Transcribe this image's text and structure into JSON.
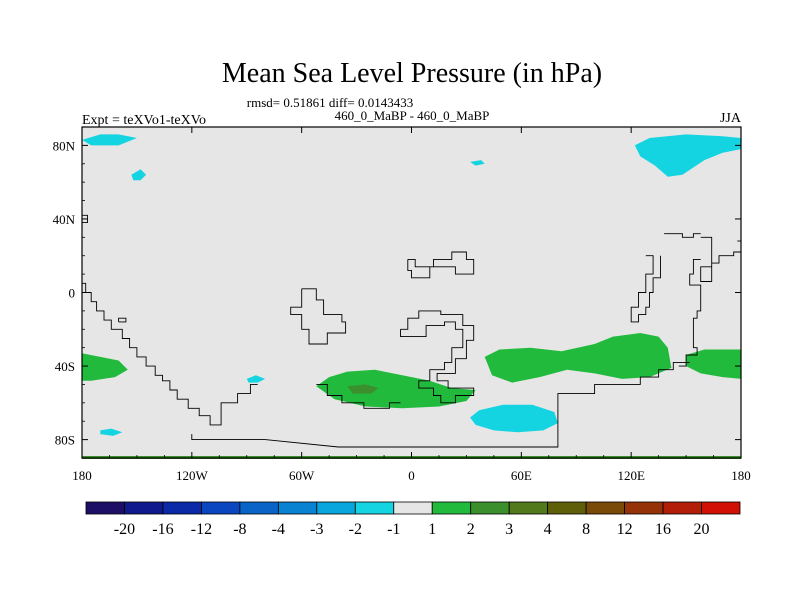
{
  "chart_data": {
    "type": "heatmap",
    "title": "Mean Sea Level Pressure (in hPa)",
    "stats": "rmsd= 0.51861 diff= 0.0143433",
    "experiment": "Expt = teXVo1-teXVo",
    "comparison": "460_0_MaBP - 460_0_MaBP",
    "season": "JJA",
    "x_range": [
      -180,
      180
    ],
    "y_range": [
      -90,
      90
    ],
    "x_ticks": [
      {
        "value": -180,
        "label": "180"
      },
      {
        "value": -120,
        "label": "120W"
      },
      {
        "value": -60,
        "label": "60W"
      },
      {
        "value": 0,
        "label": "0"
      },
      {
        "value": 60,
        "label": "60E"
      },
      {
        "value": 120,
        "label": "120E"
      },
      {
        "value": 180,
        "label": "180"
      }
    ],
    "y_ticks": [
      {
        "value": 80,
        "label": "80N"
      },
      {
        "value": 40,
        "label": "40N"
      },
      {
        "value": 0,
        "label": "0"
      },
      {
        "value": -40,
        "label": "40S"
      },
      {
        "value": -80,
        "label": "80S"
      }
    ],
    "colorbar": {
      "levels": [
        "-20",
        "-16",
        "-12",
        "-8",
        "-4",
        "-3",
        "-2",
        "-1",
        "1",
        "2",
        "3",
        "4",
        "8",
        "12",
        "16",
        "20"
      ],
      "colors": [
        "#1e0f66",
        "#111a8c",
        "#0b2aa8",
        "#0a46c0",
        "#0a64c8",
        "#0a82d2",
        "#09a6dd",
        "#14d4e2",
        "#e6e6e6",
        "#22ba3d",
        "#3c8f2d",
        "#527a1c",
        "#5f5f0a",
        "#7a4a08",
        "#963208",
        "#b21e08",
        "#d21006"
      ]
    },
    "background_color": "#e6e6e6",
    "anomalies": [
      {
        "category": "-1 to -2",
        "color": "#14d4e2",
        "points": [
          [
            -180,
            83
          ],
          [
            -170,
            86
          ],
          [
            -160,
            86
          ],
          [
            -150,
            84
          ],
          [
            -160,
            80
          ],
          [
            -175,
            80
          ]
        ]
      },
      {
        "category": "-1 to -2",
        "color": "#14d4e2",
        "points": [
          [
            -153,
            64
          ],
          [
            -148,
            67
          ],
          [
            -145,
            64
          ],
          [
            -148,
            61
          ],
          [
            -152,
            61
          ]
        ]
      },
      {
        "category": "-1 to -2",
        "color": "#14d4e2",
        "points": [
          [
            32,
            71
          ],
          [
            38,
            72
          ],
          [
            40,
            70
          ],
          [
            35,
            69
          ]
        ]
      },
      {
        "category": "-1 to -2",
        "color": "#14d4e2",
        "points": [
          [
            122,
            80
          ],
          [
            130,
            84
          ],
          [
            150,
            86
          ],
          [
            170,
            85
          ],
          [
            180,
            84
          ],
          [
            180,
            78
          ],
          [
            170,
            76
          ],
          [
            160,
            72
          ],
          [
            148,
            64
          ],
          [
            140,
            63
          ],
          [
            133,
            69
          ],
          [
            125,
            74
          ]
        ]
      },
      {
        "category": "-1 to -2",
        "color": "#14d4e2",
        "points": [
          [
            -90,
            -47
          ],
          [
            -85,
            -45
          ],
          [
            -80,
            -47
          ],
          [
            -84,
            -49
          ],
          [
            -89,
            -49
          ]
        ]
      },
      {
        "category": "-1 to -2",
        "color": "#14d4e2",
        "points": [
          [
            -170,
            -75
          ],
          [
            -164,
            -74
          ],
          [
            -158,
            -76
          ],
          [
            -163,
            -78
          ],
          [
            -170,
            -77
          ]
        ]
      },
      {
        "category": "-1 to -2",
        "color": "#14d4e2",
        "points": [
          [
            32,
            -68
          ],
          [
            37,
            -64
          ],
          [
            50,
            -61
          ],
          [
            66,
            -61
          ],
          [
            78,
            -65
          ],
          [
            80,
            -71
          ],
          [
            72,
            -75
          ],
          [
            58,
            -76
          ],
          [
            45,
            -75
          ],
          [
            35,
            -72
          ]
        ]
      },
      {
        "category": "1 to 2",
        "color": "#22ba3d",
        "points": [
          [
            -180,
            -33
          ],
          [
            -170,
            -35
          ],
          [
            -160,
            -37
          ],
          [
            -155,
            -42
          ],
          [
            -162,
            -46
          ],
          [
            -175,
            -48
          ],
          [
            -180,
            -48
          ]
        ]
      },
      {
        "category": "1 to 2",
        "color": "#22ba3d",
        "points": [
          [
            -52,
            -51
          ],
          [
            -45,
            -46
          ],
          [
            -35,
            -43
          ],
          [
            -20,
            -42
          ],
          [
            -5,
            -45
          ],
          [
            10,
            -48
          ],
          [
            22,
            -52
          ],
          [
            35,
            -53
          ],
          [
            30,
            -59
          ],
          [
            15,
            -62
          ],
          [
            -5,
            -63
          ],
          [
            -25,
            -62
          ],
          [
            -42,
            -58
          ]
        ]
      },
      {
        "category": "1 to 2",
        "color": "#22ba3d",
        "points": [
          [
            40,
            -35
          ],
          [
            48,
            -31
          ],
          [
            65,
            -30
          ],
          [
            82,
            -32
          ],
          [
            100,
            -28
          ],
          [
            110,
            -24
          ],
          [
            125,
            -22
          ],
          [
            135,
            -24
          ],
          [
            140,
            -30
          ],
          [
            142,
            -41
          ],
          [
            130,
            -46
          ],
          [
            115,
            -47
          ],
          [
            100,
            -44
          ],
          [
            85,
            -42
          ],
          [
            70,
            -46
          ],
          [
            55,
            -49
          ],
          [
            44,
            -45
          ]
        ]
      },
      {
        "category": "1 to 2",
        "color": "#22ba3d",
        "points": [
          [
            150,
            -34
          ],
          [
            160,
            -31
          ],
          [
            172,
            -31
          ],
          [
            180,
            -31
          ],
          [
            180,
            -47
          ],
          [
            170,
            -46
          ],
          [
            158,
            -44
          ],
          [
            150,
            -40
          ]
        ]
      },
      {
        "category": "2 to 3",
        "color": "#3c8f2d",
        "points": [
          [
            -35,
            -51
          ],
          [
            -25,
            -50
          ],
          [
            -18,
            -52
          ],
          [
            -22,
            -55
          ],
          [
            -32,
            -55
          ]
        ]
      }
    ],
    "boundaries": [
      [
        [
          -180,
          42
        ],
        [
          -177,
          42
        ],
        [
          -177,
          38
        ],
        [
          -180,
          38
        ]
      ],
      [
        [
          -180,
          5
        ],
        [
          -178,
          5
        ],
        [
          -178,
          0
        ],
        [
          -175,
          0
        ],
        [
          -175,
          -5
        ],
        [
          -172,
          -5
        ],
        [
          -172,
          -10
        ],
        [
          -168,
          -10
        ],
        [
          -168,
          -15
        ],
        [
          -164,
          -15
        ],
        [
          -164,
          -20
        ],
        [
          -158,
          -20
        ],
        [
          -158,
          -25
        ],
        [
          -154,
          -25
        ],
        [
          -154,
          -30
        ],
        [
          -150,
          -30
        ],
        [
          -150,
          -35
        ],
        [
          -145,
          -35
        ],
        [
          -145,
          -40
        ],
        [
          -140,
          -40
        ],
        [
          -140,
          -45
        ],
        [
          -136,
          -45
        ],
        [
          -136,
          -48
        ],
        [
          -132,
          -48
        ],
        [
          -132,
          -53
        ],
        [
          -128,
          -53
        ],
        [
          -128,
          -58
        ],
        [
          -122,
          -58
        ],
        [
          -122,
          -63
        ],
        [
          -116,
          -63
        ],
        [
          -116,
          -67
        ],
        [
          -110,
          -67
        ],
        [
          -110,
          -72
        ],
        [
          -104,
          -72
        ],
        [
          -104,
          -60
        ],
        [
          -95,
          -60
        ],
        [
          -95,
          -55
        ],
        [
          -88,
          -55
        ],
        [
          -88,
          -50
        ],
        [
          -84,
          -50
        ]
      ],
      [
        [
          -160,
          -16
        ],
        [
          -156,
          -16
        ],
        [
          -156,
          -14
        ],
        [
          -160,
          -14
        ],
        [
          -160,
          -16
        ]
      ],
      [
        [
          -120,
          -77
        ],
        [
          -120,
          -80
        ],
        [
          -80,
          -80
        ],
        [
          -40,
          -84
        ],
        [
          0,
          -84
        ],
        [
          40,
          -84
        ],
        [
          80,
          -84
        ],
        [
          80,
          -55
        ],
        [
          100,
          -55
        ],
        [
          100,
          -50
        ],
        [
          125,
          -50
        ],
        [
          125,
          -46
        ],
        [
          135,
          -46
        ],
        [
          135,
          -42
        ],
        [
          143,
          -42
        ],
        [
          143,
          -38
        ],
        [
          152,
          -38
        ]
      ],
      [
        [
          -60,
          2
        ],
        [
          -52,
          2
        ],
        [
          -52,
          -4
        ],
        [
          -48,
          -4
        ],
        [
          -48,
          -12
        ],
        [
          -38,
          -12
        ],
        [
          -38,
          -16
        ],
        [
          -36,
          -16
        ],
        [
          -36,
          -22
        ],
        [
          -46,
          -22
        ],
        [
          -46,
          -28
        ],
        [
          -56,
          -28
        ],
        [
          -56,
          -20
        ],
        [
          -60,
          -20
        ],
        [
          -60,
          -12
        ],
        [
          -66,
          -12
        ],
        [
          -66,
          -8
        ],
        [
          -60,
          -8
        ],
        [
          -60,
          2
        ]
      ],
      [
        [
          -52,
          -50
        ],
        [
          -46,
          -50
        ],
        [
          -46,
          -56
        ],
        [
          -38,
          -56
        ],
        [
          -38,
          -60
        ],
        [
          -26,
          -60
        ],
        [
          -26,
          -63
        ],
        [
          -12,
          -63
        ],
        [
          -12,
          -60
        ],
        [
          -6,
          -60
        ]
      ],
      [
        [
          -2,
          18
        ],
        [
          2,
          18
        ],
        [
          2,
          14
        ],
        [
          12,
          14
        ],
        [
          12,
          18
        ],
        [
          22,
          18
        ],
        [
          22,
          22
        ],
        [
          30,
          22
        ],
        [
          30,
          18
        ],
        [
          34,
          18
        ],
        [
          34,
          10
        ],
        [
          24,
          10
        ],
        [
          24,
          14
        ],
        [
          10,
          14
        ],
        [
          10,
          8
        ],
        [
          0,
          8
        ],
        [
          0,
          12
        ],
        [
          -2,
          12
        ],
        [
          -2,
          18
        ]
      ],
      [
        [
          -6,
          -20
        ],
        [
          -6,
          -24
        ],
        [
          8,
          -24
        ],
        [
          8,
          -18
        ],
        [
          18,
          -18
        ],
        [
          18,
          -16
        ],
        [
          24,
          -16
        ],
        [
          24,
          -20
        ],
        [
          28,
          -20
        ],
        [
          28,
          -30
        ],
        [
          22,
          -30
        ],
        [
          22,
          -38
        ],
        [
          18,
          -38
        ],
        [
          18,
          -42
        ],
        [
          10,
          -42
        ],
        [
          10,
          -48
        ],
        [
          4,
          -48
        ],
        [
          4,
          -52
        ],
        [
          12,
          -52
        ],
        [
          12,
          -56
        ],
        [
          16,
          -56
        ],
        [
          16,
          -60
        ],
        [
          24,
          -60
        ],
        [
          24,
          -56
        ],
        [
          34,
          -56
        ],
        [
          34,
          -52
        ],
        [
          20,
          -52
        ],
        [
          20,
          -48
        ],
        [
          14,
          -48
        ],
        [
          14,
          -44
        ],
        [
          24,
          -44
        ],
        [
          24,
          -36
        ],
        [
          30,
          -36
        ],
        [
          30,
          -26
        ],
        [
          34,
          -26
        ],
        [
          34,
          -18
        ],
        [
          28,
          -18
        ],
        [
          28,
          -12
        ],
        [
          16,
          -12
        ],
        [
          16,
          -10
        ],
        [
          4,
          -10
        ],
        [
          4,
          -14
        ],
        [
          -2,
          -14
        ],
        [
          -2,
          -20
        ],
        [
          -6,
          -20
        ]
      ],
      [
        [
          138,
          32
        ],
        [
          148,
          32
        ],
        [
          148,
          30
        ],
        [
          154,
          30
        ],
        [
          154,
          32
        ],
        [
          158,
          32
        ]
      ],
      [
        [
          158,
          30
        ],
        [
          164,
          30
        ],
        [
          164,
          14
        ],
        [
          158,
          14
        ],
        [
          158,
          6
        ],
        [
          164,
          6
        ],
        [
          164,
          16
        ],
        [
          168,
          16
        ],
        [
          168,
          20
        ],
        [
          176,
          20
        ],
        [
          176,
          22
        ],
        [
          180,
          22
        ]
      ],
      [
        [
          178,
          28
        ],
        [
          180,
          28
        ]
      ],
      [
        [
          128,
          20
        ],
        [
          132,
          20
        ],
        [
          132,
          10
        ],
        [
          128,
          10
        ],
        [
          128,
          0
        ],
        [
          124,
          0
        ],
        [
          124,
          -8
        ],
        [
          120,
          -8
        ],
        [
          120,
          -16
        ],
        [
          124,
          -16
        ],
        [
          124,
          -12
        ],
        [
          128,
          -12
        ],
        [
          128,
          -8
        ],
        [
          130,
          -8
        ],
        [
          130,
          0
        ],
        [
          132,
          0
        ],
        [
          132,
          8
        ],
        [
          136,
          8
        ],
        [
          136,
          20
        ]
      ],
      [
        [
          158,
          18
        ],
        [
          154,
          18
        ],
        [
          154,
          10
        ],
        [
          152,
          10
        ],
        [
          152,
          4
        ],
        [
          158,
          4
        ],
        [
          158,
          -10
        ],
        [
          156,
          -10
        ],
        [
          156,
          -14
        ],
        [
          154,
          -14
        ],
        [
          154,
          -30
        ],
        [
          156,
          -30
        ],
        [
          156,
          -34
        ],
        [
          150,
          -34
        ],
        [
          150,
          -40
        ],
        [
          146,
          -40
        ]
      ]
    ]
  }
}
